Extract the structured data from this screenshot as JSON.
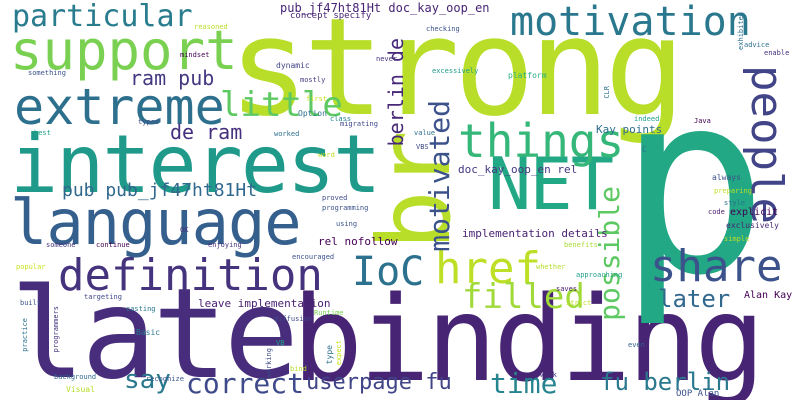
{
  "words": [
    {
      "id": "late",
      "text": "late",
      "color": "#472d7b"
    },
    {
      "id": "binding",
      "text": "binding",
      "color": "#482475"
    },
    {
      "id": "strong",
      "text": "strong",
      "color": "#b8de29"
    },
    {
      "id": "p",
      "text": "p",
      "color": "#22a884"
    },
    {
      "id": "interest",
      "text": "interest",
      "color": "#1f9a8a"
    },
    {
      "id": "language",
      "text": "language",
      "color": "#355f8d"
    },
    {
      "id": "br",
      "text": "br",
      "color": "#b8de29"
    },
    {
      "id": "extreme",
      "text": "extreme",
      "color": "#2d708e"
    },
    {
      "id": "support",
      "text": "support",
      "color": "#7ad151"
    },
    {
      "id": "definition",
      "text": "definition",
      "color": "#46337e"
    },
    {
      "id": "NET",
      "text": "NET",
      "color": "#22a884"
    },
    {
      "id": "things",
      "text": "things",
      "color": "#35b779"
    },
    {
      "id": "motivation",
      "text": "motivation",
      "color": "#2a788e"
    },
    {
      "id": "people",
      "text": "people",
      "color": "#414487"
    },
    {
      "id": "share",
      "text": "share",
      "color": "#3b528b"
    },
    {
      "id": "href",
      "text": "href",
      "color": "#bddf26"
    },
    {
      "id": "IoC",
      "text": "IoC",
      "color": "#2c728e"
    },
    {
      "id": "particular",
      "text": "particular",
      "color": "#287c8e"
    },
    {
      "id": "little",
      "text": "little",
      "color": "#5ec962"
    },
    {
      "id": "filled",
      "text": "filled",
      "color": "#a0da39"
    },
    {
      "id": "possible",
      "text": "possible",
      "color": "#5ec962"
    },
    {
      "id": "motivated",
      "text": "motivated",
      "color": "#3b528b"
    },
    {
      "id": "correct",
      "text": "correct",
      "color": "#3e4a89"
    },
    {
      "id": "time",
      "text": "time",
      "color": "#25848e"
    },
    {
      "id": "say",
      "text": "say",
      "color": "#2a788e"
    },
    {
      "id": "later",
      "text": "later",
      "color": "#31688e"
    },
    {
      "id": "fu_berlin_low",
      "text": "fu berlin",
      "color": "#2a788e"
    },
    {
      "id": "userpage_fu",
      "text": "userpage fu",
      "color": "#414487"
    },
    {
      "id": "ram_pub",
      "text": "ram pub",
      "color": "#453781"
    },
    {
      "id": "de_ram",
      "text": "de ram",
      "color": "#46307e"
    },
    {
      "id": "pub_pub",
      "text": "pub pub_jf47ht81Ht",
      "color": "#31688e"
    },
    {
      "id": "berlin_de",
      "text": "berlin de",
      "color": "#482878"
    },
    {
      "id": "pub_doc",
      "text": "pub_jf47ht81Ht doc_kay_oop_en",
      "color": "#482475"
    },
    {
      "id": "concept_specify",
      "text": "concept specify",
      "color": "#482475"
    },
    {
      "id": "doc_kay_rel",
      "text": "doc_kay_oop_en rel",
      "color": "#453781"
    },
    {
      "id": "implementation_details",
      "text": "implementation details",
      "color": "#481f70"
    },
    {
      "id": "rel_nofollow",
      "text": "rel nofollow",
      "color": "#440154"
    },
    {
      "id": "leave_implementation",
      "text": "leave implementation",
      "color": "#481f70"
    },
    {
      "id": "Kay_points",
      "text": "Kay points",
      "color": "#2e6e8e"
    },
    {
      "id": "Alan_Kay",
      "text": "Alan Kay",
      "color": "#440154"
    },
    {
      "id": "OOP_Alan",
      "text": "OOP Alan",
      "color": "#3b528b"
    },
    {
      "id": "explicit",
      "text": "explicit",
      "color": "#440154"
    },
    {
      "id": "exclusively",
      "text": "exclusively",
      "color": "#482878"
    },
    {
      "id": "always",
      "text": "always",
      "color": "#3b528b"
    },
    {
      "id": "preparing",
      "text": "preparing",
      "color": "#bddf26"
    },
    {
      "id": "style",
      "text": "style",
      "color": "#2c728e"
    },
    {
      "id": "code",
      "text": "code",
      "color": "#481a6c"
    },
    {
      "id": "simple",
      "text": "simple",
      "color": "#bddf26"
    },
    {
      "id": "benefits",
      "text": "benefits",
      "color": "#a8db34"
    },
    {
      "id": "whether",
      "text": "whether",
      "color": "#b5de2b"
    },
    {
      "id": "approaching",
      "text": "approaching",
      "color": "#1f9e89"
    },
    {
      "id": "saves",
      "text": "saves",
      "color": "#481a6c"
    },
    {
      "id": "Strict",
      "text": "Strict",
      "color": "#bddf26"
    },
    {
      "id": "even",
      "text": "even",
      "color": "#355f8d"
    },
    {
      "id": "work",
      "text": "work",
      "color": "#46307e"
    },
    {
      "id": "expect",
      "text": "expect",
      "color": "#cae11f"
    },
    {
      "id": "working",
      "text": "working",
      "color": "#3e4a89"
    },
    {
      "id": "type",
      "text": "type",
      "color": "#2d708e"
    },
    {
      "id": "VB",
      "text": "VB",
      "color": "#20a486"
    },
    {
      "id": "bind",
      "text": "bind",
      "color": "#b8de29"
    },
    {
      "id": "Runtime",
      "text": "Runtime",
      "color": "#7ad151"
    },
    {
      "id": "diffusion",
      "text": "diffusion",
      "color": "#3e4a89"
    },
    {
      "id": "Basic",
      "text": "Basic",
      "color": "#2a788e"
    },
    {
      "id": "casting",
      "text": "casting",
      "color": "#2a788e"
    },
    {
      "id": "targeting",
      "text": "targeting",
      "color": "#3e4a89"
    },
    {
      "id": "recognize",
      "text": "recognize",
      "color": "#38598c"
    },
    {
      "id": "programmers",
      "text": "programmers",
      "color": "#46337e"
    },
    {
      "id": "practice",
      "text": "practice",
      "color": "#2d708e"
    },
    {
      "id": "built",
      "text": "built",
      "color": "#3b528b"
    },
    {
      "id": "background",
      "text": "background",
      "color": "#31688e"
    },
    {
      "id": "Visual",
      "text": "Visual",
      "color": "#b8de29"
    },
    {
      "id": "popular",
      "text": "popular",
      "color": "#cae11f"
    },
    {
      "id": "someone",
      "text": "someone",
      "color": "#453781"
    },
    {
      "id": "continue",
      "text": "continue",
      "color": "#440154"
    },
    {
      "id": "enjoying",
      "text": "enjoying",
      "color": "#46327e"
    },
    {
      "id": "OK",
      "text": "OK",
      "color": "#46327e"
    },
    {
      "id": "encouraged",
      "text": "encouraged",
      "color": "#3b528b"
    },
    {
      "id": "using",
      "text": "using",
      "color": "#3b528b"
    },
    {
      "id": "programming",
      "text": "programming",
      "color": "#3b528b"
    },
    {
      "id": "proved",
      "text": "proved",
      "color": "#3e4a89"
    },
    {
      "id": "word",
      "text": "word",
      "color": "#bddf26"
    },
    {
      "id": "worked",
      "text": "worked",
      "color": "#2d708e"
    },
    {
      "id": "Option",
      "text": "Option",
      "color": "#2d708e"
    },
    {
      "id": "first",
      "text": "first",
      "color": "#cae11f"
    },
    {
      "id": "class",
      "text": "class",
      "color": "#25848e"
    },
    {
      "id": "migrating",
      "text": "migrating",
      "color": "#3e4a89"
    },
    {
      "id": "mostly",
      "text": "mostly",
      "color": "#433e85"
    },
    {
      "id": "dynamic",
      "text": "dynamic",
      "color": "#414487"
    },
    {
      "id": "never",
      "text": "never",
      "color": "#46327e"
    },
    {
      "id": "excessively",
      "text": "excessively",
      "color": "#1f9e89"
    },
    {
      "id": "platform",
      "text": "platform",
      "color": "#2ab07f"
    },
    {
      "id": "value",
      "text": "value",
      "color": "#2d708e"
    },
    {
      "id": "VBS",
      "text": "VBS",
      "color": "#3e4a89"
    },
    {
      "id": "C",
      "text": "C",
      "color": "#2d708e"
    },
    {
      "id": "Java",
      "text": "Java",
      "color": "#440154"
    },
    {
      "id": "indeed",
      "text": "indeed",
      "color": "#1fa088"
    },
    {
      "id": "CLR",
      "text": "CLR",
      "color": "#2d708e"
    },
    {
      "id": "mindset",
      "text": "mindset",
      "color": "#440154"
    },
    {
      "id": "something",
      "text": "something",
      "color": "#3b528b"
    },
    {
      "id": "best",
      "text": "best",
      "color": "#20a386"
    },
    {
      "id": "typed",
      "text": "typed",
      "color": "#3b528b"
    },
    {
      "id": "checking",
      "text": "checking",
      "color": "#3b528b"
    },
    {
      "id": "advice",
      "text": "advice",
      "color": "#2d708e"
    },
    {
      "id": "enable",
      "text": "enable",
      "color": "#46307e"
    },
    {
      "id": "exhibited",
      "text": "exhibited",
      "color": "#2d708e"
    },
    {
      "id": "reasoned",
      "text": "reasoned",
      "color": "#b8de29"
    }
  ]
}
